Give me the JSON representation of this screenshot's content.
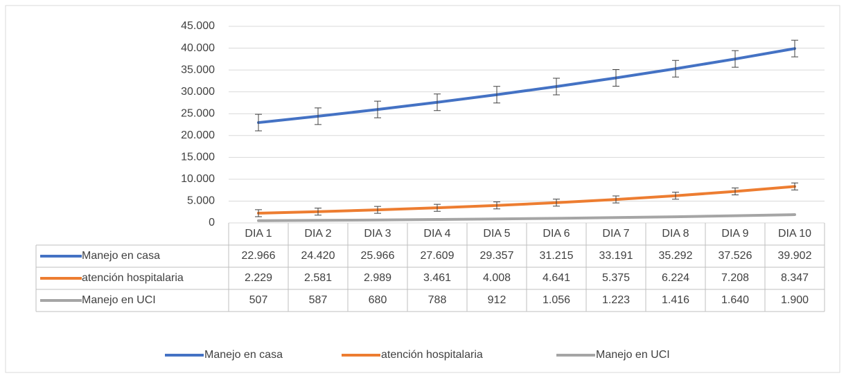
{
  "chart_data": {
    "type": "line",
    "categories": [
      "DIA 1",
      "DIA 2",
      "DIA 3",
      "DIA 4",
      "DIA 5",
      "DIA 6",
      "DIA 7",
      "DIA 8",
      "DIA 9",
      "DIA 10"
    ],
    "series": [
      {
        "name": "Manejo en casa",
        "color": "#4472c4",
        "values": [
          22966,
          24420,
          25966,
          27609,
          29357,
          31215,
          33191,
          35292,
          37526,
          39902
        ],
        "value_labels": [
          "22.966",
          "24.420",
          "25.966",
          "27.609",
          "29.357",
          "31.215",
          "33.191",
          "35.292",
          "37.526",
          "39.902"
        ],
        "errors": [
          1900,
          1900,
          1900,
          1900,
          1900,
          1900,
          1900,
          1900,
          1900,
          1900
        ]
      },
      {
        "name": "atención hospitalaria",
        "color": "#ed7d31",
        "values": [
          2229,
          2581,
          2989,
          3461,
          4008,
          4641,
          5375,
          6224,
          7208,
          8347
        ],
        "value_labels": [
          "2.229",
          "2.581",
          "2.989",
          "3.461",
          "4.008",
          "4.641",
          "5.375",
          "6.224",
          "7.208",
          "8.347"
        ],
        "errors": [
          800,
          800,
          800,
          800,
          800,
          800,
          800,
          800,
          800,
          800
        ]
      },
      {
        "name": "Manejo en UCI",
        "color": "#a5a5a5",
        "values": [
          507,
          587,
          680,
          788,
          912,
          1056,
          1223,
          1416,
          1640,
          1900
        ],
        "value_labels": [
          "507",
          "587",
          "680",
          "788",
          "912",
          "1.056",
          "1.223",
          "1.416",
          "1.640",
          "1.900"
        ]
      }
    ],
    "ylim": [
      0,
      45000
    ],
    "yticks": [
      0,
      {
        "value": 5000,
        "label": "5.000"
      },
      {
        "value": 10000,
        "label": "10.000"
      },
      {
        "value": 15000,
        "label": "15.000"
      },
      {
        "value": 20000,
        "label": "20.000"
      },
      {
        "value": 25000,
        "label": "25.000"
      },
      {
        "value": 30000,
        "label": "30.000"
      },
      {
        "value": 35000,
        "label": "35.000"
      },
      {
        "value": 40000,
        "label": "40.000"
      },
      {
        "value": 45000,
        "label": "45.000"
      }
    ],
    "grid": true,
    "legend": "bottom"
  }
}
